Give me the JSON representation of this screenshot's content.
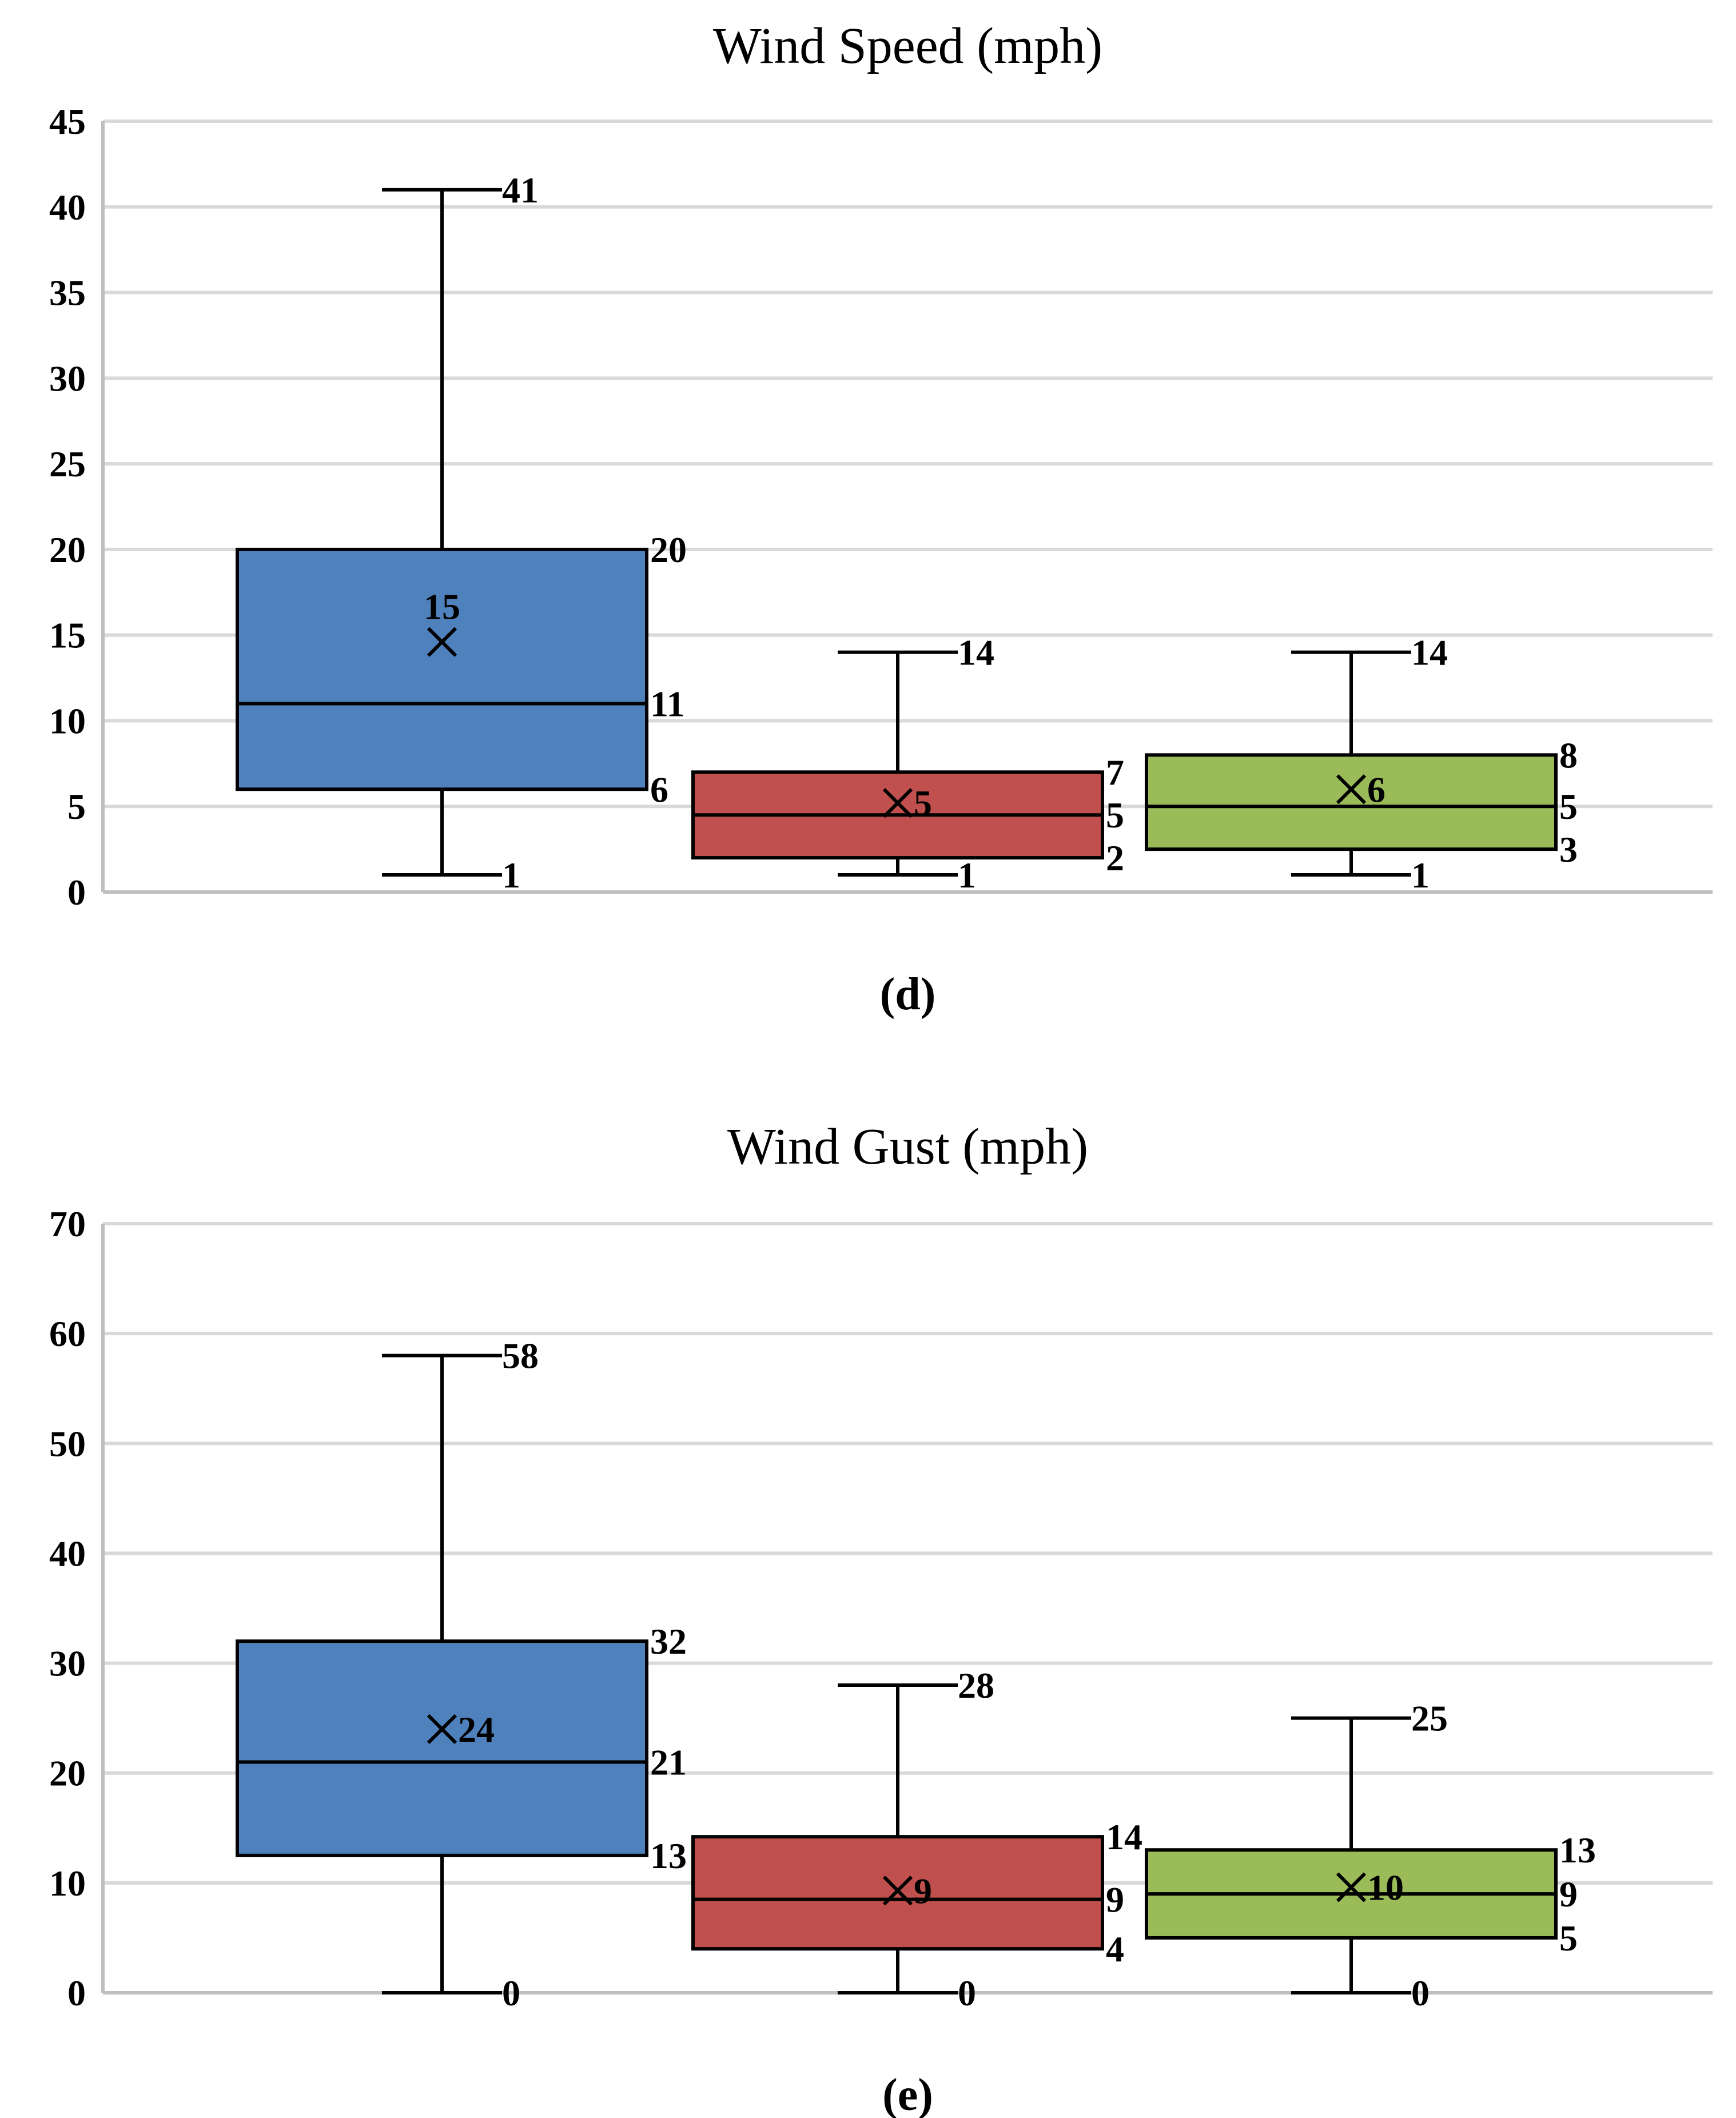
{
  "colors": {
    "series_a": "#4f81bd",
    "series_b": "#c0504d",
    "series_c": "#9bbb59"
  },
  "chart_data": [
    {
      "type": "box",
      "title": "Wind Speed (mph)",
      "caption": "(d)",
      "ylim": [
        0,
        45
      ],
      "yticks": [
        "0",
        "5",
        "10",
        "15",
        "20",
        "25",
        "30",
        "35",
        "40",
        "45"
      ],
      "boxes": [
        {
          "min": 1,
          "q1": 6,
          "median": 11,
          "q3": 20,
          "max": 41,
          "mean": 14.6,
          "labels": {
            "min": "1",
            "q1": "6",
            "median": "11",
            "q3": "20",
            "max": "41",
            "mean": "15"
          }
        },
        {
          "min": 1,
          "q1": 2,
          "median": 4.5,
          "q3": 7,
          "max": 14,
          "mean": 5.2,
          "labels": {
            "min": "1",
            "q1": "2",
            "median": "5",
            "q3": "7",
            "max": "14",
            "mean": "5"
          }
        },
        {
          "min": 1,
          "q1": 2.5,
          "median": 5,
          "q3": 8,
          "max": 14,
          "mean": 6,
          "labels": {
            "min": "1",
            "q1": "3",
            "median": "5",
            "q3": "8",
            "max": "14",
            "mean": "6"
          }
        }
      ]
    },
    {
      "type": "box",
      "title": "Wind Gust (mph)",
      "caption": "(e)",
      "ylim": [
        0,
        70
      ],
      "yticks": [
        "0",
        "10",
        "20",
        "30",
        "40",
        "50",
        "60",
        "70"
      ],
      "boxes": [
        {
          "min": 0,
          "q1": 12.5,
          "median": 21,
          "q3": 32,
          "max": 58,
          "mean": 24,
          "labels": {
            "min": "0",
            "q1": "13",
            "median": "21",
            "q3": "32",
            "max": "58",
            "mean": "24"
          }
        },
        {
          "min": 0,
          "q1": 4,
          "median": 8.5,
          "q3": 14.2,
          "max": 28,
          "mean": 9.3,
          "labels": {
            "min": "0",
            "q1": "4",
            "median": "9",
            "q3": "14",
            "max": "28",
            "mean": "9"
          }
        },
        {
          "min": 0,
          "q1": 5,
          "median": 9,
          "q3": 13,
          "max": 25,
          "mean": 9.6,
          "labels": {
            "min": "0",
            "q1": "5",
            "median": "9",
            "q3": "13",
            "max": "25",
            "mean": "10"
          }
        }
      ]
    }
  ]
}
